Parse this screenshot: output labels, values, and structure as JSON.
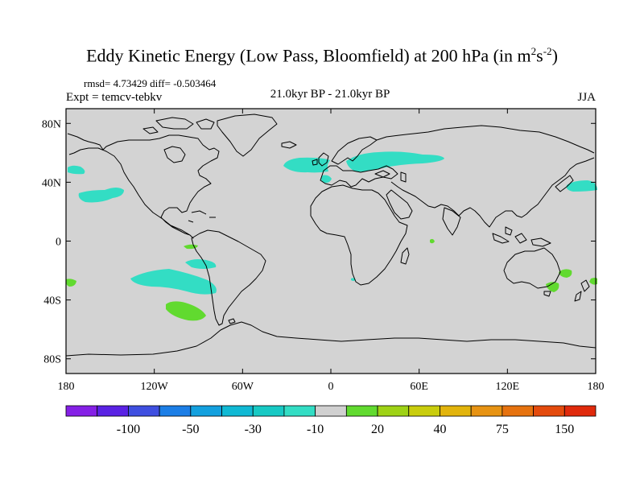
{
  "header": {
    "title_main": "Eddy Kinetic Energy (Low Pass, Bloomfield) at 200 hPa (in m",
    "title_sup1": "2",
    "title_mid": "s",
    "title_sup2": "-2",
    "title_end": ")",
    "stats": "rmsd= 4.73429 diff= -0.503464",
    "expt": "Expt = temcv-tebkv",
    "period": "21.0kyr BP - 21.0kyr BP",
    "season": "JJA"
  },
  "map": {
    "lat_ticks": [
      "80N",
      "40N",
      "0",
      "40S",
      "80S"
    ],
    "lon_ticks": [
      "180",
      "120W",
      "60W",
      "0",
      "60E",
      "120E",
      "180"
    ],
    "colors": {
      "background": "#d3d3d3",
      "cyan_fill": "#33ddc4",
      "green_fill": "#61da2f"
    }
  },
  "colorbar": {
    "colors": [
      "#8520e6",
      "#5a22e4",
      "#3f4fe0",
      "#1c7ee6",
      "#13a0de",
      "#10b9d4",
      "#17c9c4",
      "#33ddc4",
      "#d0d0d0",
      "#61da2f",
      "#9ed215",
      "#c9cd0d",
      "#e2b40c",
      "#e79313",
      "#e6720f",
      "#e44b0d",
      "#e02a0c"
    ],
    "labels": [
      "-100",
      "-50",
      "-30",
      "-10",
      "20",
      "40",
      "75",
      "150"
    ]
  }
}
